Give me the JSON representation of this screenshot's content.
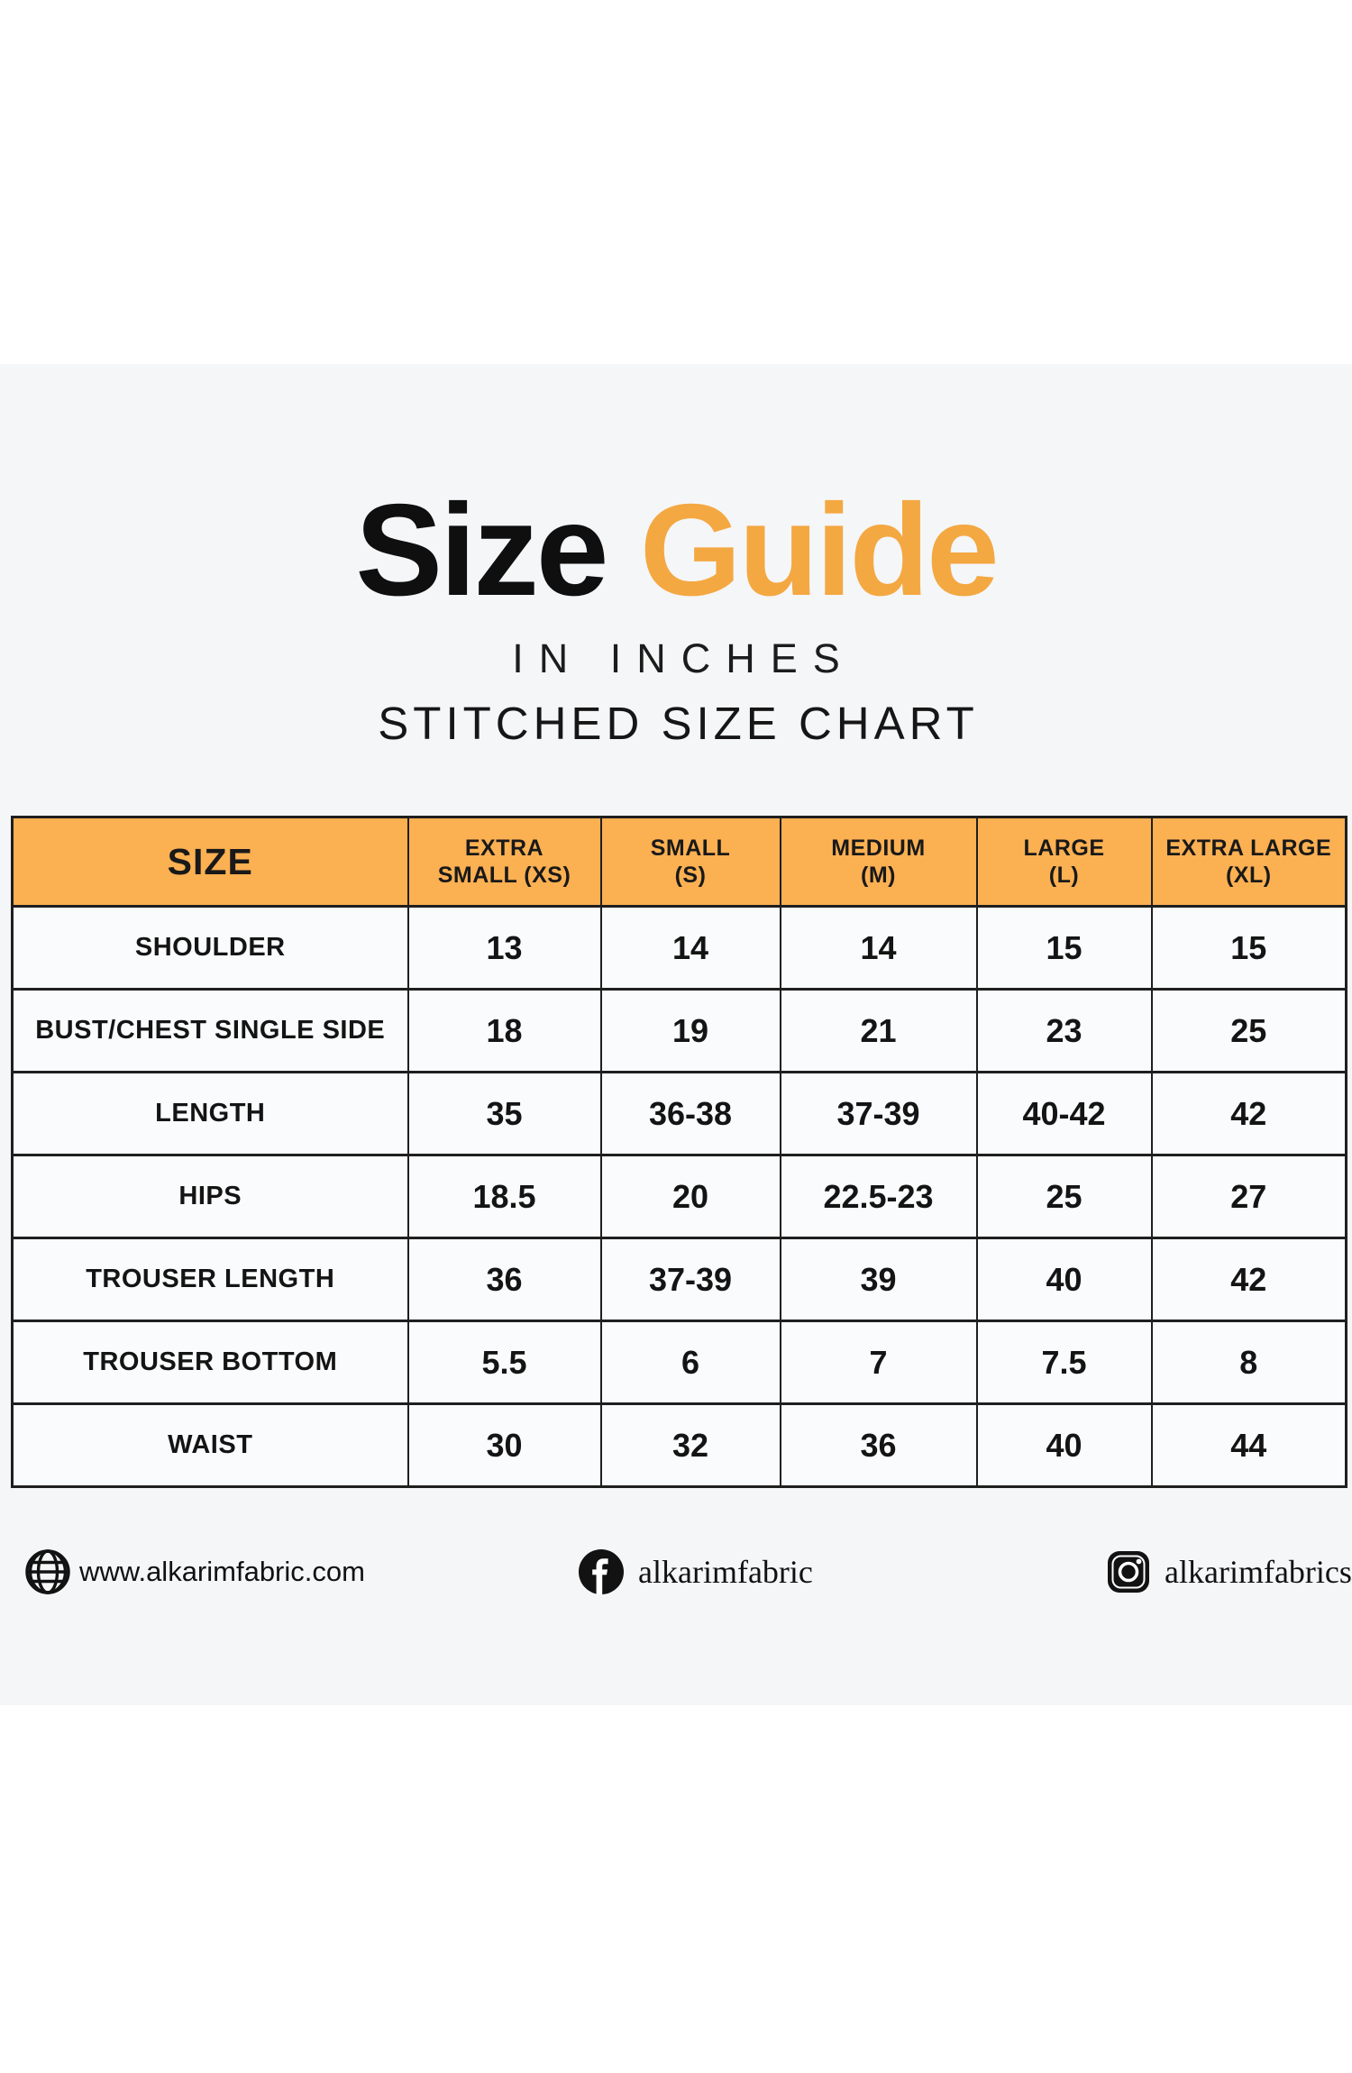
{
  "header": {
    "title_black": "Size",
    "title_orange": "Guide",
    "subtitle_units": "IN INCHES",
    "subtitle_chart": "STITCHED SIZE CHART"
  },
  "colors": {
    "accent_orange_title": "#f4a842",
    "header_row_orange": "#fbb052",
    "band_background": "#f5f6f8",
    "table_border": "#1f1f1f",
    "text": "#141414"
  },
  "table": {
    "columns": [
      "SIZE",
      "EXTRA\nSMALL (XS)",
      "SMALL\n(S)",
      "MEDIUM\n(M)",
      "LARGE\n(L)",
      "EXTRA LARGE\n(XL)"
    ],
    "rows": [
      {
        "label": "SHOULDER",
        "values": [
          "13",
          "14",
          "14",
          "15",
          "15"
        ]
      },
      {
        "label": "BUST/CHEST SINGLE SIDE",
        "values": [
          "18",
          "19",
          "21",
          "23",
          "25"
        ]
      },
      {
        "label": "LENGTH",
        "values": [
          "35",
          "36-38",
          "37-39",
          "40-42",
          "42"
        ]
      },
      {
        "label": "HIPS",
        "values": [
          "18.5",
          "20",
          "22.5-23",
          "25",
          "27"
        ]
      },
      {
        "label": "TROUSER LENGTH",
        "values": [
          "36",
          "37-39",
          "39",
          "40",
          "42"
        ]
      },
      {
        "label": "TROUSER BOTTOM",
        "values": [
          "5.5",
          "6",
          "7",
          "7.5",
          "8"
        ]
      },
      {
        "label": "WAIST",
        "values": [
          "30",
          "32",
          "36",
          "40",
          "44"
        ]
      }
    ]
  },
  "footer": {
    "website": {
      "icon": "globe-icon",
      "text": "www.alkarimfabric.com"
    },
    "facebook": {
      "icon": "facebook-icon",
      "text": "alkarimfabric"
    },
    "instagram": {
      "icon": "instagram-icon",
      "text": "alkarimfabrics"
    }
  }
}
